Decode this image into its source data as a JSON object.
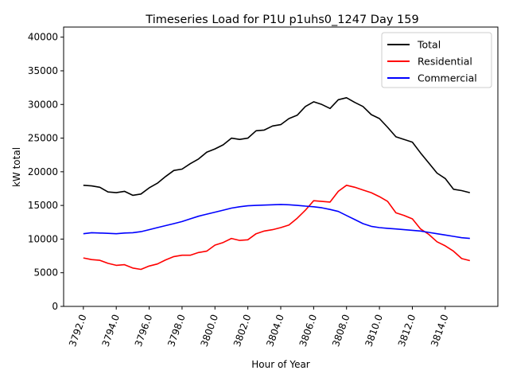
{
  "chart_data": {
    "type": "line",
    "title": "Timeseries Load for P1U p1uhs0_1247  Day 159",
    "xlabel": "Hour of Year",
    "ylabel": "kW total",
    "xlim": [
      3790.8,
      3817.2
    ],
    "ylim": [
      0,
      41500
    ],
    "x_ticks": [
      3792.0,
      3794.0,
      3796.0,
      3798.0,
      3800.0,
      3802.0,
      3804.0,
      3806.0,
      3808.0,
      3810.0,
      3812.0,
      3814.0
    ],
    "x_tick_labels": [
      "3792.0",
      "3794.0",
      "3796.0",
      "3798.0",
      "3800.0",
      "3802.0",
      "3804.0",
      "3806.0",
      "3808.0",
      "3810.0",
      "3812.0",
      "3814.0"
    ],
    "y_ticks": [
      0,
      5000,
      10000,
      15000,
      20000,
      25000,
      30000,
      35000,
      40000
    ],
    "y_tick_labels": [
      "0",
      "5000",
      "10000",
      "15000",
      "20000",
      "25000",
      "30000",
      "35000",
      "40000"
    ],
    "legend_position": "top-right",
    "grid": false,
    "x": [
      3792.0,
      3792.5,
      3793.0,
      3793.5,
      3794.0,
      3794.5,
      3795.0,
      3795.5,
      3796.0,
      3796.5,
      3797.0,
      3797.5,
      3798.0,
      3798.5,
      3799.0,
      3799.5,
      3800.0,
      3800.5,
      3801.0,
      3801.5,
      3802.0,
      3802.5,
      3803.0,
      3803.5,
      3804.0,
      3804.5,
      3805.0,
      3805.5,
      3806.0,
      3806.5,
      3807.0,
      3807.5,
      3808.0,
      3808.5,
      3809.0,
      3809.5,
      3810.0,
      3810.5,
      3811.0,
      3811.5,
      3812.0,
      3812.5,
      3813.0,
      3813.5,
      3814.0,
      3814.5,
      3815.0,
      3815.5
    ],
    "series": [
      {
        "name": "Total",
        "color": "#000000",
        "values": [
          18000,
          17900,
          17700,
          17000,
          16900,
          17100,
          16500,
          16700,
          17600,
          18300,
          19300,
          20200,
          20400,
          21200,
          21900,
          22900,
          23400,
          24000,
          25000,
          24800,
          25000,
          26100,
          26200,
          26800,
          27000,
          27900,
          28400,
          29700,
          30400,
          30000,
          29400,
          30700,
          31000,
          30300,
          29700,
          28500,
          27900,
          26600,
          25200,
          24800,
          24400,
          22800,
          21300,
          19800,
          19000,
          17400,
          17200,
          16900
        ]
      },
      {
        "name": "Residential",
        "color": "#ff0000",
        "values": [
          7200,
          6950,
          6850,
          6400,
          6100,
          6200,
          5700,
          5500,
          6000,
          6300,
          6900,
          7400,
          7600,
          7600,
          8000,
          8200,
          9100,
          9500,
          10100,
          9800,
          9900,
          10800,
          11200,
          11400,
          11700,
          12100,
          13100,
          14300,
          15700,
          15600,
          15500,
          17100,
          18000,
          17700,
          17300,
          16900,
          16300,
          15600,
          13900,
          13500,
          13000,
          11500,
          10700,
          9600,
          9000,
          8200,
          7100,
          6800
        ]
      },
      {
        "name": "Commercial",
        "color": "#0000ff",
        "values": [
          10800,
          10950,
          10900,
          10850,
          10800,
          10900,
          10950,
          11100,
          11400,
          11700,
          12000,
          12300,
          12600,
          13000,
          13400,
          13700,
          14000,
          14300,
          14600,
          14800,
          14950,
          15000,
          15050,
          15100,
          15150,
          15100,
          15000,
          14900,
          14800,
          14650,
          14400,
          14100,
          13500,
          12900,
          12300,
          11900,
          11700,
          11600,
          11500,
          11400,
          11300,
          11200,
          11000,
          10800,
          10600,
          10400,
          10200,
          10100
        ]
      }
    ]
  }
}
